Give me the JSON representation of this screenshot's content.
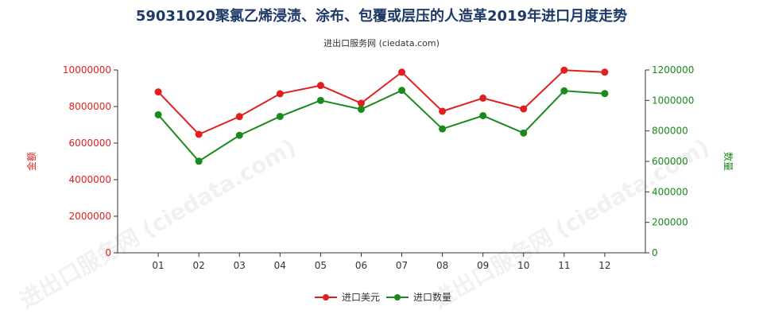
{
  "title": "59031020聚氯乙烯浸渍、涂布、包覆或层压的人造革2019年进口月度走势",
  "subtitle": "进出口服务网 (ciedata.com)",
  "watermark": "进出口服务网 (ciedata.com)",
  "colors": {
    "series1": "#e02020",
    "series2": "#1a8a1a",
    "axis": "#333333",
    "title": "#1f3a66"
  },
  "chart_data": {
    "type": "line",
    "categories": [
      "01",
      "02",
      "03",
      "04",
      "05",
      "06",
      "07",
      "08",
      "09",
      "10",
      "11",
      "12"
    ],
    "series": [
      {
        "name": "进口美元",
        "axis": "left",
        "values": [
          8800000,
          6480000,
          7450000,
          8700000,
          9150000,
          8180000,
          9880000,
          7740000,
          8460000,
          7870000,
          9990000,
          9880000
        ]
      },
      {
        "name": "进口数量",
        "axis": "right",
        "values": [
          906000,
          601000,
          771000,
          895000,
          1000000,
          942000,
          1066000,
          813000,
          900000,
          786000,
          1063000,
          1045000
        ]
      }
    ],
    "ylabel_left": "金额",
    "ylabel_right": "数量",
    "ylim_left": [
      0,
      10000000
    ],
    "ylim_right": [
      0,
      1200000
    ],
    "yticks_left": [
      "0",
      "2000000",
      "4000000",
      "6000000",
      "8000000",
      "10000000"
    ],
    "yticks_right": [
      "0",
      "200000",
      "400000",
      "600000",
      "800000",
      "1000000",
      "1200000"
    ],
    "legend_position": "bottom"
  }
}
